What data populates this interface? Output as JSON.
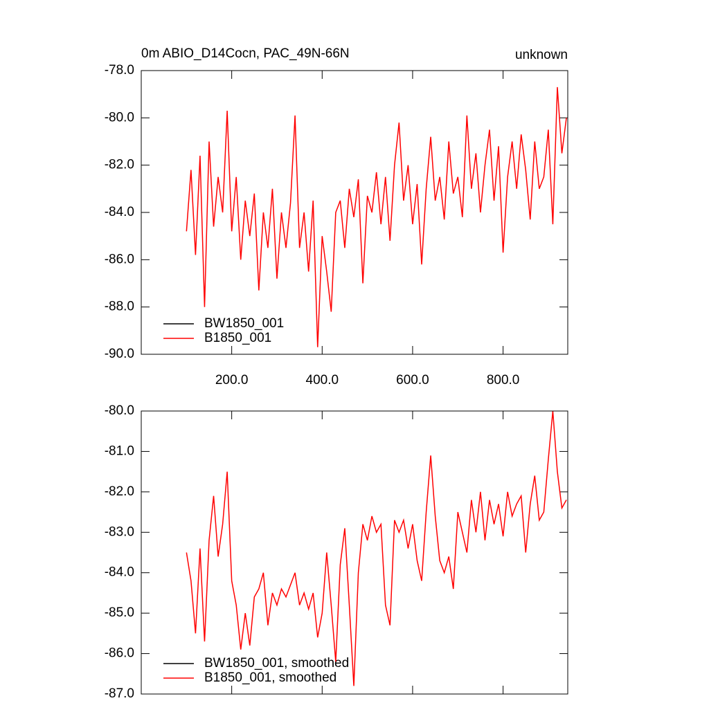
{
  "chart_data": [
    {
      "type": "line",
      "title": "0m ABIO_D14Cocn, PAC_49N-66N",
      "title_right": "unknown",
      "x": [
        100,
        110,
        120,
        130,
        140,
        150,
        160,
        170,
        180,
        190,
        200,
        210,
        220,
        230,
        240,
        250,
        260,
        270,
        280,
        290,
        300,
        310,
        320,
        330,
        340,
        350,
        360,
        370,
        380,
        390,
        400,
        410,
        420,
        430,
        440,
        450,
        460,
        470,
        480,
        490,
        500,
        510,
        520,
        530,
        540,
        550,
        560,
        570,
        580,
        590,
        600,
        610,
        620,
        630,
        640,
        650,
        660,
        670,
        680,
        690,
        700,
        710,
        720,
        730,
        740,
        750,
        760,
        770,
        780,
        790,
        800,
        810,
        820,
        830,
        840,
        850,
        860,
        870,
        880,
        890,
        900,
        910,
        920,
        930,
        940
      ],
      "series": [
        {
          "name": "BW1850_001",
          "color": "#000000",
          "values": [
            null,
            null,
            null,
            null,
            null,
            null,
            null,
            null,
            null,
            null,
            null,
            null,
            null,
            null,
            null,
            null,
            null,
            null,
            null,
            null,
            null,
            null,
            null,
            null,
            null,
            null,
            null,
            null,
            null,
            null,
            null,
            null,
            null,
            null,
            null,
            null,
            null,
            null,
            null,
            null,
            null,
            null,
            null,
            null,
            null,
            null,
            null,
            null,
            null,
            null,
            null,
            null,
            null,
            null,
            null,
            null,
            null,
            null,
            null,
            null,
            null,
            null,
            null,
            null,
            null,
            null,
            null,
            null,
            null,
            null,
            null,
            null,
            null,
            null,
            null,
            null,
            null,
            null,
            null,
            null,
            null,
            null,
            null,
            null,
            null
          ]
        },
        {
          "name": "B1850_001",
          "color": "#ff0000",
          "values": [
            -84.8,
            -82.2,
            -85.8,
            -81.6,
            -88.0,
            -81.0,
            -84.6,
            -82.5,
            -84.0,
            -79.7,
            -84.8,
            -82.5,
            -86.0,
            -83.5,
            -85.0,
            -83.2,
            -87.3,
            -84.0,
            -85.5,
            -83.0,
            -86.8,
            -84.0,
            -85.5,
            -83.6,
            -79.9,
            -85.5,
            -84.0,
            -86.5,
            -83.5,
            -89.7,
            -85.0,
            -86.5,
            -88.2,
            -84.0,
            -83.5,
            -85.5,
            -83.0,
            -84.2,
            -82.6,
            -87.0,
            -83.3,
            -84.0,
            -82.3,
            -84.5,
            -82.5,
            -85.2,
            -82.0,
            -80.2,
            -83.5,
            -82.0,
            -84.5,
            -82.8,
            -86.2,
            -83.0,
            -80.8,
            -83.5,
            -82.5,
            -84.3,
            -81.0,
            -83.2,
            -82.5,
            -84.2,
            -79.9,
            -83.0,
            -81.5,
            -84.0,
            -82.0,
            -80.5,
            -83.5,
            -81.2,
            -85.7,
            -82.5,
            -81.0,
            -83.0,
            -80.7,
            -82.2,
            -84.3,
            -81.0,
            -83.0,
            -82.5,
            -80.5,
            -84.5,
            -78.7,
            -81.5,
            -80.0
          ]
        }
      ],
      "xlim": [
        0,
        943
      ],
      "xticks": [
        {
          "value": 200,
          "label": "200.0"
        },
        {
          "value": 400,
          "label": "400.0"
        },
        {
          "value": 600,
          "label": "600.0"
        },
        {
          "value": 800,
          "label": "800.0"
        }
      ],
      "ylim": [
        -90,
        -78
      ],
      "yticks": [
        {
          "value": -90,
          "label": "-90.0"
        },
        {
          "value": -88,
          "label": "-88.0"
        },
        {
          "value": -86,
          "label": "-86.0"
        },
        {
          "value": -84,
          "label": "-84.0"
        },
        {
          "value": -82,
          "label": "-82.0"
        },
        {
          "value": -80,
          "label": "-80.0"
        },
        {
          "value": -78,
          "label": "-78.0"
        }
      ],
      "legend": "lower left"
    },
    {
      "type": "line",
      "x": [
        100,
        110,
        120,
        130,
        140,
        150,
        160,
        170,
        180,
        190,
        200,
        210,
        220,
        230,
        240,
        250,
        260,
        270,
        280,
        290,
        300,
        310,
        320,
        330,
        340,
        350,
        360,
        370,
        380,
        390,
        400,
        410,
        420,
        430,
        440,
        450,
        460,
        470,
        480,
        490,
        500,
        510,
        520,
        530,
        540,
        550,
        560,
        570,
        580,
        590,
        600,
        610,
        620,
        630,
        640,
        650,
        660,
        670,
        680,
        690,
        700,
        710,
        720,
        730,
        740,
        750,
        760,
        770,
        780,
        790,
        800,
        810,
        820,
        830,
        840,
        850,
        860,
        870,
        880,
        890,
        900,
        910,
        920,
        930,
        940
      ],
      "series": [
        {
          "name": "BW1850_001, smoothed",
          "color": "#000000",
          "values": [
            null,
            null,
            null,
            null,
            null,
            null,
            null,
            null,
            null,
            null,
            null,
            null,
            null,
            null,
            null,
            null,
            null,
            null,
            null,
            null,
            null,
            null,
            null,
            null,
            null,
            null,
            null,
            null,
            null,
            null,
            null,
            null,
            null,
            null,
            null,
            null,
            null,
            null,
            null,
            null,
            null,
            null,
            null,
            null,
            null,
            null,
            null,
            null,
            null,
            null,
            null,
            null,
            null,
            null,
            null,
            null,
            null,
            null,
            null,
            null,
            null,
            null,
            null,
            null,
            null,
            null,
            null,
            null,
            null,
            null,
            null,
            null,
            null,
            null,
            null,
            null,
            null,
            null,
            null,
            null,
            null,
            null,
            null,
            null,
            null
          ]
        },
        {
          "name": "B1850_001, smoothed",
          "color": "#ff0000",
          "values": [
            -83.5,
            -84.2,
            -85.5,
            -83.4,
            -85.7,
            -83.2,
            -82.1,
            -83.6,
            -82.8,
            -81.5,
            -84.2,
            -84.8,
            -85.9,
            -85.0,
            -85.8,
            -84.6,
            -84.4,
            -84.0,
            -85.3,
            -84.5,
            -84.8,
            -84.4,
            -84.6,
            -84.3,
            -84.0,
            -84.8,
            -84.5,
            -84.9,
            -84.5,
            -85.6,
            -85.0,
            -83.5,
            -84.8,
            -86.2,
            -83.8,
            -82.9,
            -84.8,
            -86.8,
            -84.0,
            -82.8,
            -83.2,
            -82.6,
            -83.0,
            -82.8,
            -84.8,
            -85.3,
            -82.7,
            -83.0,
            -82.7,
            -83.4,
            -82.8,
            -83.7,
            -84.2,
            -82.5,
            -81.1,
            -82.6,
            -83.7,
            -84.0,
            -83.6,
            -84.4,
            -82.5,
            -83.0,
            -83.5,
            -82.2,
            -83.0,
            -82.0,
            -83.2,
            -82.2,
            -82.8,
            -82.3,
            -83.1,
            -82.0,
            -82.6,
            -82.3,
            -82.1,
            -83.5,
            -82.3,
            -81.6,
            -82.7,
            -82.5,
            -81.2,
            -80.0,
            -81.5,
            -82.4,
            -82.2
          ]
        }
      ],
      "xlim": [
        0,
        943
      ],
      "xticks": [
        200,
        400,
        600,
        800
      ],
      "ylim": [
        -87,
        -80
      ],
      "yticks": [
        {
          "value": -87,
          "label": "-87.0"
        },
        {
          "value": -86,
          "label": "-86.0"
        },
        {
          "value": -85,
          "label": "-85.0"
        },
        {
          "value": -84,
          "label": "-84.0"
        },
        {
          "value": -83,
          "label": "-83.0"
        },
        {
          "value": -82,
          "label": "-82.0"
        },
        {
          "value": -81,
          "label": "-81.0"
        },
        {
          "value": -80,
          "label": "-80.0"
        }
      ],
      "legend": "lower left"
    }
  ]
}
